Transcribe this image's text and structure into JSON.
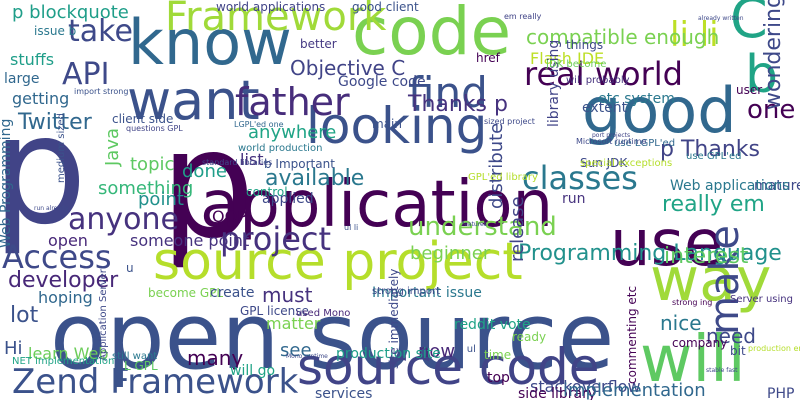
{
  "words": [
    {
      "text": "p",
      "color": "#414487"
    },
    {
      "text": "p",
      "color": "#440154"
    },
    {
      "text": "open source",
      "color": "#3b528b"
    },
    {
      "text": "application",
      "color": "#440154"
    },
    {
      "text": "know",
      "color": "#31688e"
    },
    {
      "text": "code",
      "color": "#7ad151"
    },
    {
      "text": "source project",
      "color": "#b5de2b"
    },
    {
      "text": "use",
      "color": "#440154"
    },
    {
      "text": "good",
      "color": "#31688e"
    },
    {
      "text": "want",
      "color": "#3b528b"
    },
    {
      "text": "looking",
      "color": "#3b528b"
    },
    {
      "text": "source code",
      "color": "#414487"
    },
    {
      "text": "will",
      "color": "#5ec962"
    },
    {
      "text": "way",
      "color": "#a0da39"
    },
    {
      "text": "Zend Framework",
      "color": "#3b528b"
    },
    {
      "text": "find",
      "color": "#3b528b"
    },
    {
      "text": "father",
      "color": "#472d7b"
    },
    {
      "text": "b",
      "color": "#20a486"
    },
    {
      "text": "C",
      "color": "#20a486"
    },
    {
      "text": "real world",
      "color": "#440154"
    },
    {
      "text": "Framework",
      "color": "#a0da39"
    },
    {
      "text": "anyone",
      "color": "#46327e"
    },
    {
      "text": "project",
      "color": "#46327e"
    },
    {
      "text": "Access",
      "color": "#3e4989"
    },
    {
      "text": "classes",
      "color": "#2a788e"
    },
    {
      "text": "make",
      "color": "#3e4989"
    },
    {
      "text": "li li",
      "color": "#bddf26"
    },
    {
      "text": "take",
      "color": "#3e4989"
    },
    {
      "text": "API",
      "color": "#3e4989"
    },
    {
      "text": "one",
      "color": "#440154"
    },
    {
      "text": "understand",
      "color": "#7ad151"
    },
    {
      "text": "p Thanks",
      "color": "#414487"
    },
    {
      "text": "Thanks p",
      "color": "#46327e"
    },
    {
      "text": "Objective C",
      "color": "#414487"
    },
    {
      "text": "Twitter",
      "color": "#31688e"
    },
    {
      "text": "developer",
      "color": "#482878"
    },
    {
      "text": "available",
      "color": "#2a788e"
    },
    {
      "text": "Programming Language",
      "color": "#21918c"
    },
    {
      "text": "really em",
      "color": "#20a486"
    },
    {
      "text": "compatible enough",
      "color": "#7ad151"
    },
    {
      "text": "wondering",
      "color": "#3e4989"
    },
    {
      "text": "lot",
      "color": "#3b528b"
    },
    {
      "text": "interest",
      "color": "#5ec962"
    },
    {
      "text": "need",
      "color": "#3e4989"
    },
    {
      "text": "nice",
      "color": "#2a788e"
    },
    {
      "text": "must",
      "color": "#46327e"
    },
    {
      "text": "p blockquote",
      "color": "#1f9e89"
    },
    {
      "text": "stuffs",
      "color": "#1f9e89"
    },
    {
      "text": "getting",
      "color": "#31688e"
    },
    {
      "text": "stackoverflow",
      "color": "#3e4989"
    },
    {
      "text": "many",
      "color": "#440154"
    },
    {
      "text": "Flash IDE",
      "color": "#bddf26"
    },
    {
      "text": "Java",
      "color": "#5ec962"
    },
    {
      "text": "topic",
      "color": "#5ec962"
    },
    {
      "text": "something",
      "color": "#35b779"
    },
    {
      "text": "point",
      "color": "#21918c"
    },
    {
      "text": "OOP",
      "color": "#440154"
    },
    {
      "text": "done",
      "color": "#1f9e89"
    },
    {
      "text": "anywhere",
      "color": "#20a486"
    },
    {
      "text": "list",
      "color": "#46327e"
    },
    {
      "text": "beginner",
      "color": "#7ad151"
    },
    {
      "text": "see",
      "color": "#31688e"
    },
    {
      "text": "now",
      "color": "#482878"
    },
    {
      "text": "Hi",
      "color": "#3b528b"
    },
    {
      "text": "hoping",
      "color": "#31688e"
    },
    {
      "text": "open",
      "color": "#482878"
    },
    {
      "text": "someone point",
      "color": "#46327e"
    },
    {
      "text": "matter",
      "color": "#7ad151"
    },
    {
      "text": "learn Web",
      "color": "#6ccd5a"
    },
    {
      "text": "will go",
      "color": "#20a486"
    },
    {
      "text": "services",
      "color": "#3b528b"
    },
    {
      "text": "production site",
      "color": "#1f9e89"
    },
    {
      "text": "side library",
      "color": "#440154"
    },
    {
      "text": "implementation",
      "color": "#31688e"
    },
    {
      "text": "PHP",
      "color": "#3e4989"
    },
    {
      "text": "top",
      "color": "#440154"
    },
    {
      "text": "Important issue",
      "color": "#2a788e"
    },
    {
      "text": "reddit vote",
      "color": "#20a486"
    },
    {
      "text": "release",
      "color": "#414487"
    },
    {
      "text": "distribute",
      "color": "#3e4989"
    },
    {
      "text": "library using",
      "color": "#414487"
    },
    {
      "text": "etc system",
      "color": "#2a788e"
    },
    {
      "text": "extent",
      "color": "#3b528b"
    },
    {
      "text": "mature",
      "color": "#3e4989"
    },
    {
      "text": "Web applications",
      "color": "#2a788e"
    },
    {
      "text": "Web Programming",
      "color": "#31688e"
    },
    {
      "text": "client side",
      "color": "#3b528b"
    },
    {
      "text": "Google code",
      "color": "#3e4989"
    },
    {
      "text": "world applications",
      "color": "#414487"
    },
    {
      "text": "good client",
      "color": "#3b528b"
    },
    {
      "text": "better",
      "color": "#443983"
    },
    {
      "text": "large",
      "color": "#31688e"
    },
    {
      "text": "issue b",
      "color": "#2a788e"
    },
    {
      "text": "things",
      "color": "#3e4989"
    },
    {
      "text": "href",
      "color": "#440154"
    },
    {
      "text": "user",
      "color": "#440154"
    },
    {
      "text": "run",
      "color": "#46327e"
    },
    {
      "text": "Sun JDK",
      "color": "#3e4989"
    },
    {
      "text": "GPL license",
      "color": "#3e4989"
    },
    {
      "text": "become GPL",
      "color": "#7ad151"
    },
    {
      "text": "create",
      "color": "#3b528b"
    },
    {
      "text": "used Mono",
      "color": "#482878"
    },
    {
      "text": "ready",
      "color": "#7ad151"
    },
    {
      "text": "time",
      "color": "#7ad151"
    },
    {
      "text": "company",
      "color": "#440154"
    },
    {
      "text": "applied",
      "color": "#3e4989"
    },
    {
      "text": "control",
      "color": "#20a486"
    },
    {
      "text": "main",
      "color": "#3b528b"
    },
    {
      "text": "bit",
      "color": "#3e4989"
    },
    {
      "text": "u",
      "color": "#3b528b"
    },
    {
      "text": "still want",
      "color": "#2a788e"
    },
    {
      "text": "b Important",
      "color": "#3b528b"
    },
    {
      "text": "will probably",
      "color": "#46327e"
    },
    {
      "text": "JDK become",
      "color": "#6ccd5a"
    },
    {
      "text": "strong import",
      "color": "#3e4989"
    },
    {
      "text": "commenting etc",
      "color": "#440154"
    },
    {
      "text": "use LGPL'ed",
      "color": "#31688e"
    },
    {
      "text": "use GPL'ed",
      "color": "#2a788e"
    },
    {
      "text": "li ul",
      "color": "#3b528b"
    },
    {
      "text": "GPL'ed library",
      "color": "#b5de2b"
    },
    {
      "text": "Server using",
      "color": "#46327e"
    },
    {
      "text": "site immediately",
      "color": "#3e4989"
    },
    {
      "text": "L GPL",
      "color": "#5ec962"
    },
    {
      "text": "LGPL'ed one",
      "color": "#31688e"
    },
    {
      "text": "special exceptions",
      "color": "#b5de2b"
    },
    {
      "text": "em really",
      "color": "#414487"
    },
    {
      "text": "import strong",
      "color": "#3b528b"
    },
    {
      "text": "standard libraries",
      "color": "#3e4989"
    },
    {
      "text": "world production",
      "color": "#2a788e"
    },
    {
      "text": "questions GPL",
      "color": "#414487"
    },
    {
      "text": "sized project",
      "color": "#3e4989"
    },
    {
      "text": "ul li",
      "color": "#3b528b"
    },
    {
      "text": "Microsoft runtime",
      "color": "#3e4989"
    },
    {
      "text": "medium sized",
      "color": "#3b528b"
    },
    {
      "text": "Application Server",
      "color": "#3e4989"
    },
    {
      "text": "NET implementation",
      "color": "#20a486"
    },
    {
      "text": "production environment",
      "color": "#b5de2b"
    },
    {
      "text": "Mono runtime",
      "color": "#3e4989"
    },
    {
      "text": "strong ing",
      "color": "#440154"
    },
    {
      "text": "stable fast",
      "color": "#3e4989"
    },
    {
      "text": "already written",
      "color": "#3e4989"
    },
    {
      "text": "port projects",
      "color": "#414487"
    },
    {
      "text": "run already",
      "color": "#3e4989"
    },
    {
      "text": "features",
      "color": "#3e4989"
    }
  ]
}
